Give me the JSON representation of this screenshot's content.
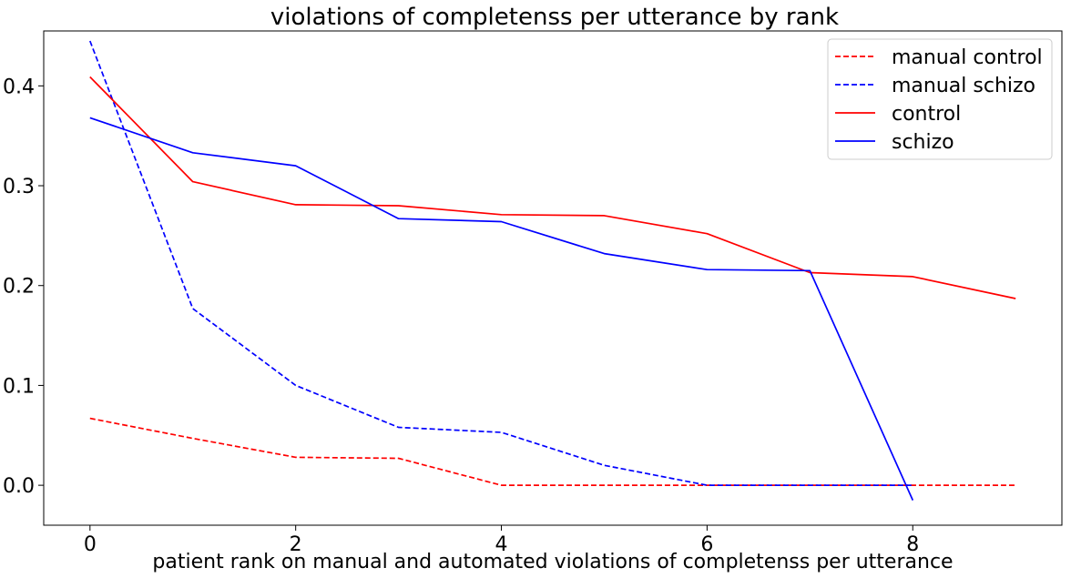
{
  "chart_data": {
    "type": "line",
    "title": "violations of completenss per utterance by rank",
    "xlabel": "patient rank on manual and automated violations of completenss per utterance",
    "ylabel": "",
    "xlim": [
      -0.45,
      9.45
    ],
    "ylim": [
      -0.04,
      0.455
    ],
    "x_ticks": [
      0,
      2,
      4,
      6,
      8
    ],
    "y_ticks": [
      0.0,
      0.1,
      0.2,
      0.3,
      0.4
    ],
    "x_tick_labels": [
      "0",
      "2",
      "4",
      "6",
      "8"
    ],
    "y_tick_labels": [
      "0.0",
      "0.1",
      "0.2",
      "0.3",
      "0.4"
    ],
    "grid": false,
    "legend": {
      "placement": "top-right"
    },
    "series": [
      {
        "name": "manual control",
        "color": "#ff0000",
        "style": "dashed",
        "x": [
          0,
          1,
          2,
          3,
          4,
          5,
          6,
          7,
          8,
          9
        ],
        "values": [
          0.067,
          0.047,
          0.028,
          0.027,
          0.0,
          0.0,
          0.0,
          0.0,
          0.0,
          0.0
        ]
      },
      {
        "name": "manual schizo",
        "color": "#0000ff",
        "style": "dashed",
        "x": [
          0,
          1,
          2,
          3,
          4,
          5,
          6,
          7,
          8
        ],
        "values": [
          0.445,
          0.177,
          0.1,
          0.058,
          0.053,
          0.02,
          0.0,
          0.0,
          0.0
        ]
      },
      {
        "name": "control",
        "color": "#ff0000",
        "style": "solid",
        "x": [
          0,
          1,
          2,
          3,
          4,
          5,
          6,
          7,
          8,
          9
        ],
        "values": [
          0.409,
          0.304,
          0.281,
          0.28,
          0.271,
          0.27,
          0.252,
          0.213,
          0.209,
          0.187
        ]
      },
      {
        "name": "schizo",
        "color": "#0000ff",
        "style": "solid",
        "x": [
          0,
          1,
          2,
          3,
          4,
          5,
          6,
          7,
          8
        ],
        "values": [
          0.368,
          0.333,
          0.32,
          0.267,
          0.264,
          0.232,
          0.216,
          0.215,
          -0.015
        ]
      }
    ]
  }
}
